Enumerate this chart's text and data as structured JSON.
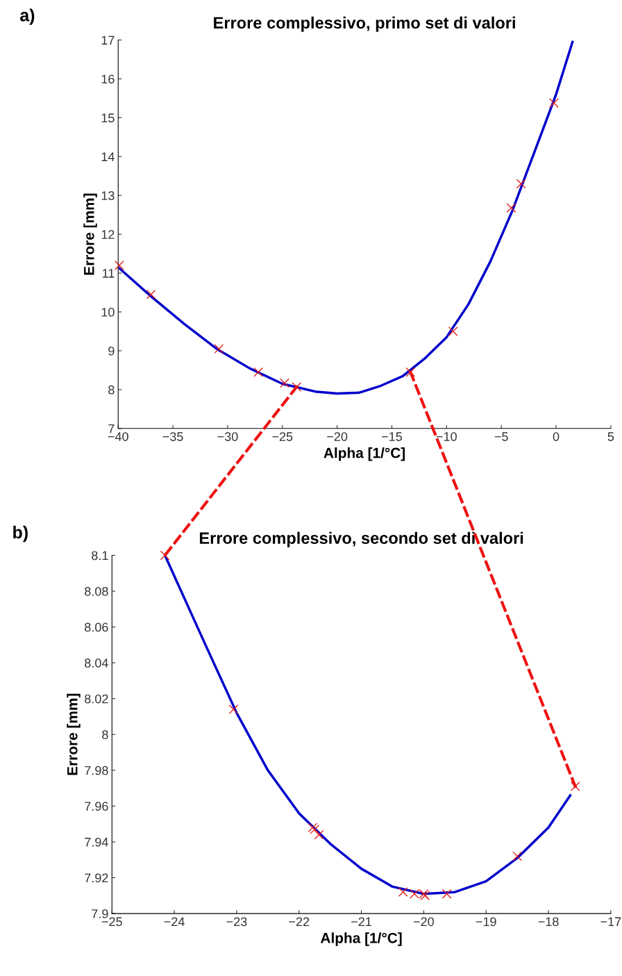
{
  "chart_data": [
    {
      "type": "line",
      "title": "Errore complessivo, primo set di valori",
      "xlabel": "Alpha [1/°C]",
      "ylabel": "Errore [mm]",
      "annotations": [
        "a)"
      ],
      "xlim": [
        -40,
        5
      ],
      "xticks": [
        -40,
        -35,
        -30,
        -25,
        -20,
        -15,
        -10,
        -5,
        0,
        5
      ],
      "ylim": [
        7,
        17
      ],
      "yticks": [
        7,
        8,
        9,
        10,
        11,
        12,
        13,
        14,
        15,
        16,
        17
      ],
      "grid": false,
      "legend": false,
      "series": [
        {
          "type": "line",
          "color": "#0000cc",
          "x": [
            -40,
            -37,
            -34,
            -31,
            -28,
            -25,
            -22,
            -20,
            -18,
            -16,
            -14,
            -12,
            -10,
            -8,
            -6,
            -4,
            -2,
            0,
            1.5
          ],
          "values": [
            11.15,
            10.4,
            9.7,
            9.05,
            8.55,
            8.15,
            7.95,
            7.9,
            7.92,
            8.1,
            8.35,
            8.8,
            9.35,
            10.2,
            11.3,
            12.6,
            14.1,
            15.6,
            16.95
          ],
          "line_style": "solid",
          "marker": "none"
        },
        {
          "type": "scatter",
          "color": "#dd2222",
          "x": [
            -39.9,
            -37,
            -30.8,
            -27.2,
            -24.8,
            -23.7,
            -13.3,
            -9.4,
            -4.1,
            -3.2,
            -0.2
          ],
          "values": [
            11.2,
            10.45,
            9.05,
            8.45,
            8.17,
            8.07,
            8.45,
            9.5,
            12.68,
            13.3,
            15.38
          ],
          "marker": "cross"
        }
      ]
    },
    {
      "type": "line",
      "title": "Errore complessivo, secondo set di valori",
      "xlabel": "Alpha [1/°C]",
      "ylabel": "Errore [mm]",
      "annotations": [
        "b)"
      ],
      "xlim": [
        -25,
        -17
      ],
      "xticks": [
        -25,
        -24,
        -23,
        -22,
        -21,
        -20,
        -19,
        -18,
        -17
      ],
      "ylim": [
        7.9,
        8.1
      ],
      "yticks": [
        7.9,
        7.92,
        7.94,
        7.96,
        7.98,
        8,
        8.02,
        8.04,
        8.06,
        8.08,
        8.1
      ],
      "grid": false,
      "legend": false,
      "series": [
        {
          "type": "line",
          "color": "#0000cc",
          "x": [
            -24.15,
            -23.5,
            -23,
            -22.5,
            -22,
            -21.5,
            -21,
            -20.5,
            -20,
            -19.5,
            -19,
            -18.5,
            -18,
            -17.65
          ],
          "values": [
            8.1,
            8.05,
            8.012,
            7.98,
            7.956,
            7.939,
            7.925,
            7.915,
            7.911,
            7.912,
            7.918,
            7.931,
            7.948,
            7.966
          ],
          "line_style": "solid",
          "marker": "none"
        },
        {
          "type": "scatter",
          "color": "#dd2222",
          "x": [
            -24.15,
            -23.05,
            -21.78,
            -21.75,
            -21.68,
            -20.33,
            -20.15,
            -20,
            -19.98,
            -19.63,
            -18.5,
            -17.57
          ],
          "values": [
            8.1,
            8.014,
            7.948,
            7.947,
            7.944,
            7.912,
            7.911,
            7.911,
            7.91,
            7.911,
            7.932,
            7.971
          ],
          "marker": "cross"
        }
      ]
    }
  ]
}
